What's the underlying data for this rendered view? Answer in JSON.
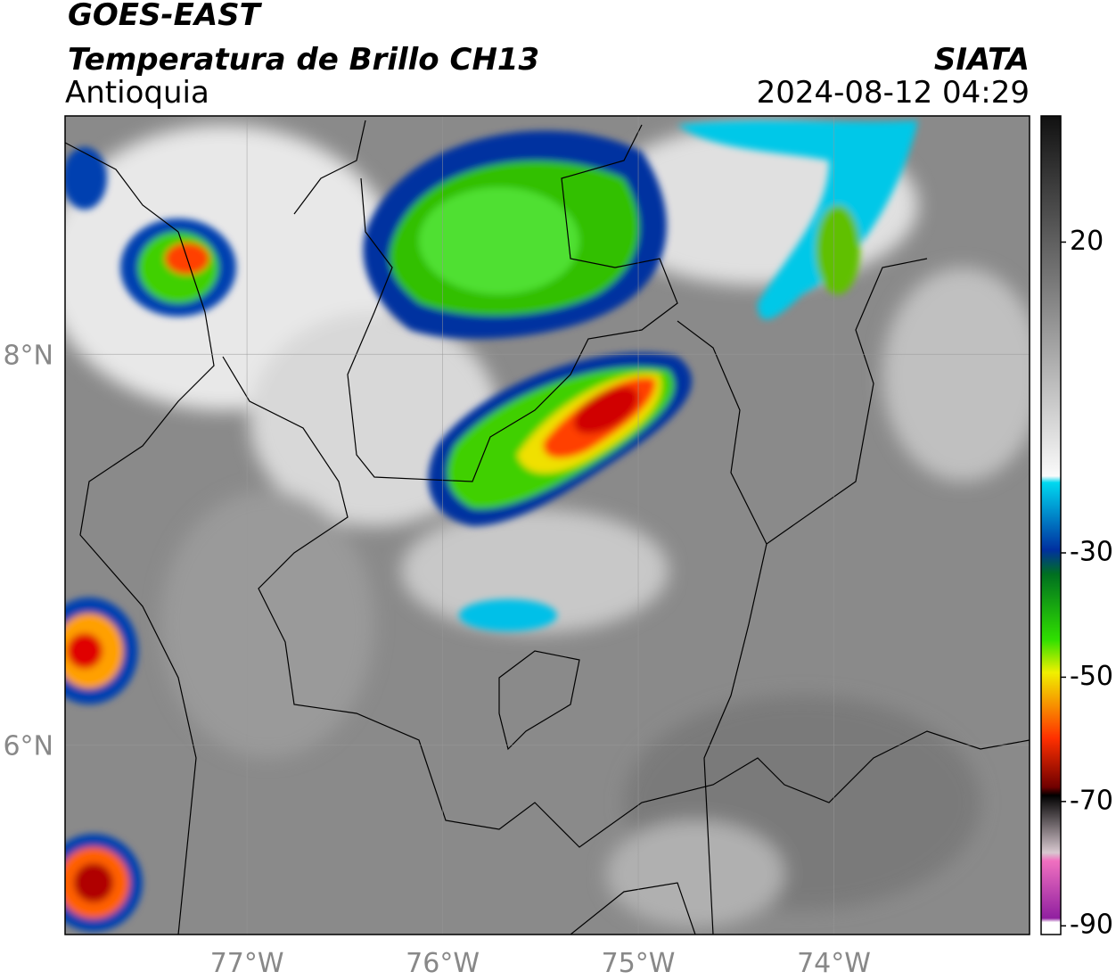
{
  "header": {
    "title": "GOES-EAST",
    "subtitle": "Temperatura de Brillo CH13",
    "region": "Antioquia",
    "source": "SIATA",
    "timestamp": "2024-08-12 04:29"
  },
  "map": {
    "lonlim": [
      -77.93,
      -73.0
    ],
    "latlim": [
      5.03,
      9.22
    ],
    "lonticks": [
      {
        "value": -77,
        "label": "77°W"
      },
      {
        "value": -76,
        "label": "76°W"
      },
      {
        "value": -75,
        "label": "75°W"
      },
      {
        "value": -74,
        "label": "74°W"
      }
    ],
    "latticks": [
      {
        "value": 8,
        "label": "8°N"
      },
      {
        "value": 6,
        "label": "6°N"
      }
    ]
  },
  "colorbar": {
    "range": [
      -91.4,
      40.3
    ],
    "ticks": [
      20,
      -30,
      -50,
      -70,
      -90
    ]
  }
}
